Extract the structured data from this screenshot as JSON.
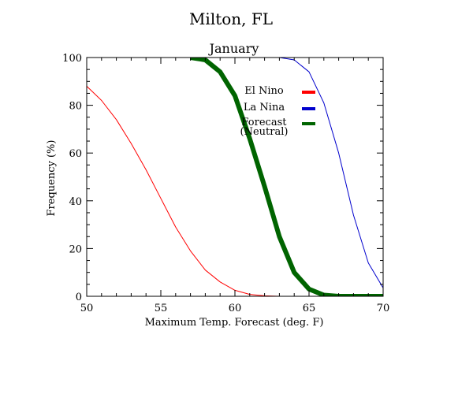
{
  "chart_data": {
    "type": "line",
    "title": "Milton, FL",
    "subtitle": "January",
    "xlabel": "Maximum Temp. Forecast (deg. F)",
    "ylabel": "Frequency (%)",
    "xlim": [
      50,
      70
    ],
    "ylim": [
      0,
      100
    ],
    "x_ticks": [
      50,
      55,
      60,
      65,
      70
    ],
    "y_ticks": [
      0,
      20,
      40,
      60,
      80,
      100
    ],
    "grid": false,
    "legend_position": "top-right",
    "series": [
      {
        "name": "El Nino",
        "color": "#ff0000",
        "style": "thin",
        "x": [
          50,
          51,
          52,
          53,
          54,
          55,
          56,
          57,
          58,
          59,
          60,
          61,
          62,
          63,
          64,
          65,
          66,
          67,
          68,
          69,
          70
        ],
        "y": [
          88,
          82,
          74,
          64,
          53,
          41,
          29,
          19,
          11,
          6,
          2.5,
          0.8,
          0.2,
          0,
          0,
          0,
          0,
          0,
          0,
          0,
          0
        ]
      },
      {
        "name": "La Nina",
        "color": "#0000cd",
        "style": "thin",
        "x": [
          63,
          64,
          65,
          66,
          67,
          68,
          69,
          70
        ],
        "y": [
          100,
          99,
          94,
          81,
          60,
          34,
          14,
          3.5
        ]
      },
      {
        "name": "Forecast\n(Neutral)",
        "color": "#006400",
        "style": "thick",
        "x": [
          57,
          58,
          59,
          60,
          61,
          62,
          63,
          64,
          65,
          66,
          67,
          68,
          69,
          70
        ],
        "y": [
          100,
          99,
          94,
          84,
          66,
          46,
          25,
          10,
          3,
          0.5,
          0,
          0,
          0,
          0
        ]
      }
    ],
    "legend": [
      {
        "label": "El Nino",
        "color": "#ff0000"
      },
      {
        "label": "La Nina",
        "color": "#0000cd"
      },
      {
        "label_lines": [
          "Forecast",
          "(Neutral)"
        ],
        "color": "#006400"
      }
    ]
  }
}
